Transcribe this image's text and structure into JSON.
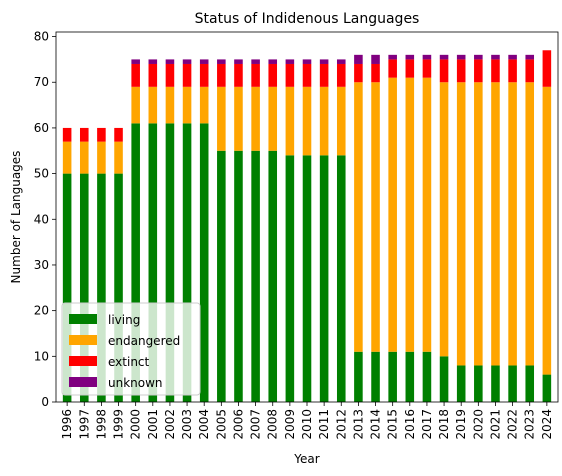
{
  "chart_data": {
    "type": "bar",
    "stacked": true,
    "title": "Status of Indidenous Languages",
    "xlabel": "Year",
    "ylabel": "Number of Languages",
    "ylim": [
      0,
      81
    ],
    "yticks": [
      0,
      10,
      20,
      30,
      40,
      50,
      60,
      70,
      80
    ],
    "grid": false,
    "legend_position": "lower-left",
    "categories": [
      "1996",
      "1997",
      "1998",
      "1999",
      "2000",
      "2001",
      "2002",
      "2003",
      "2004",
      "2005",
      "2006",
      "2007",
      "2008",
      "2009",
      "2010",
      "2011",
      "2012",
      "2013",
      "2014",
      "2015",
      "2016",
      "2017",
      "2018",
      "2019",
      "2020",
      "2021",
      "2022",
      "2023",
      "2024"
    ],
    "series": [
      {
        "name": "living",
        "color": "#008000",
        "values": [
          50,
          50,
          50,
          50,
          61,
          61,
          61,
          61,
          61,
          55,
          55,
          55,
          55,
          54,
          54,
          54,
          54,
          11,
          11,
          11,
          11,
          11,
          10,
          8,
          8,
          8,
          8,
          8,
          6
        ]
      },
      {
        "name": "endangered",
        "color": "#FFA500",
        "values": [
          7,
          7,
          7,
          7,
          8,
          8,
          8,
          8,
          8,
          14,
          14,
          14,
          14,
          15,
          15,
          15,
          15,
          59,
          59,
          60,
          60,
          60,
          60,
          62,
          62,
          62,
          62,
          62,
          63
        ]
      },
      {
        "name": "extinct",
        "color": "#FF0000",
        "values": [
          3,
          3,
          3,
          3,
          5,
          5,
          5,
          5,
          5,
          5,
          5,
          5,
          5,
          5,
          5,
          5,
          5,
          4,
          4,
          4,
          4,
          4,
          5,
          5,
          5,
          5,
          5,
          5,
          8
        ]
      },
      {
        "name": "unknown",
        "color": "#800080",
        "values": [
          0,
          0,
          0,
          0,
          1,
          1,
          1,
          1,
          1,
          1,
          1,
          1,
          1,
          1,
          1,
          1,
          1,
          2,
          2,
          1,
          1,
          1,
          1,
          1,
          1,
          1,
          1,
          1,
          0
        ]
      }
    ]
  }
}
